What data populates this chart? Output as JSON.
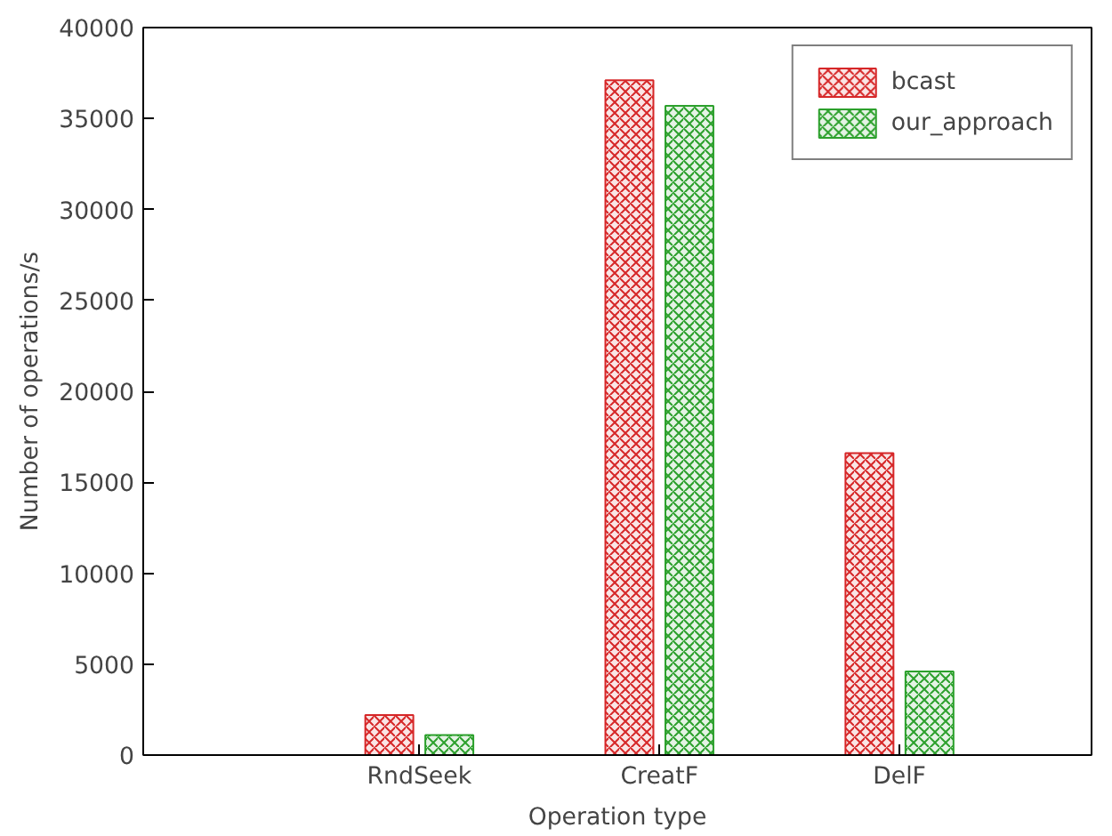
{
  "chart_data": {
    "type": "bar",
    "xlabel": "Operation type",
    "ylabel": "Number of operations/s",
    "categories": [
      "RndSeek",
      "CreatF",
      "DelF"
    ],
    "series": [
      {
        "name": "bcast",
        "color": "#d62728",
        "values": [
          2200,
          37100,
          16600
        ]
      },
      {
        "name": "our_approach",
        "color": "#2ca02c",
        "values": [
          1100,
          35700,
          4600
        ]
      }
    ],
    "ylim": [
      0,
      40000
    ],
    "yticks": [
      0,
      5000,
      10000,
      15000,
      20000,
      25000,
      30000,
      35000,
      40000
    ],
    "grid": false,
    "legend": "top right"
  }
}
